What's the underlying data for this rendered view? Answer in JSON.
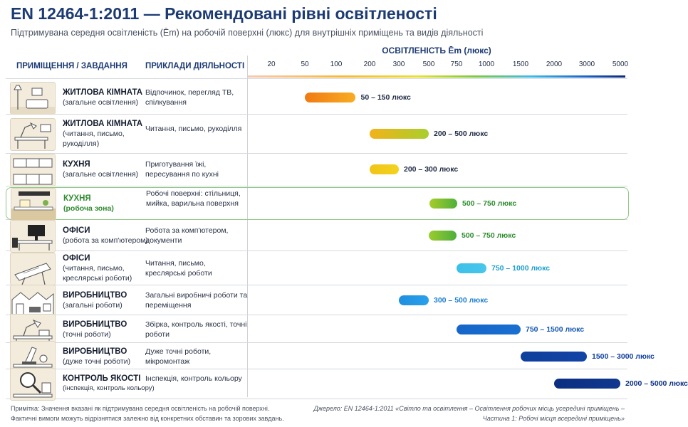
{
  "title": "EN 12464-1:2011 — Рекомендовані рівні освітленості",
  "subtitle": "Підтримувана середня освітленість (Ēm) на робочій поверхні (люкс) для внутрішніх приміщень та видів діяльності",
  "headers": {
    "room": "ПРИМІЩЕННЯ / ЗАВДАННЯ",
    "activity": "ПРИКЛАДИ ДІЯЛЬНОСТІ"
  },
  "chart_data": {
    "type": "bar",
    "orientation": "horizontal-range",
    "xlabel": "ОСВІТЛЕНІСТЬ Ēm (люкс)",
    "x_scale": "log",
    "x_ticks": [
      "20",
      "50",
      "100",
      "200",
      "300",
      "500",
      "750",
      "1000",
      "1500",
      "2000",
      "3000",
      "5000"
    ],
    "x_tick_values": [
      20,
      50,
      100,
      200,
      300,
      500,
      750,
      1000,
      1500,
      2000,
      3000,
      5000
    ],
    "grid": false,
    "categories": [
      "ЖИТЛОВА КІМНАТА (загальне освітлення)",
      "ЖИТЛОВА КІМНАТА (читання, письмо, рукоділля)",
      "КУХНЯ (загальне освітлення)",
      "КУХНЯ (робоча зона)",
      "ОФІСИ (робота за комп'ютером)",
      "ОФІСИ (читання, письмо, креслярські роботи)",
      "ВИРОБНИЦТВО (загальні роботи)",
      "ВИРОБНИЦТВО (точні роботи)",
      "ВИРОБНИЦТВО (дуже точні роботи)",
      "КОНТРОЛЬ ЯКОСТІ (інспекція, контроль кольору)"
    ],
    "rows": [
      {
        "name": "ЖИТЛОВА КІМНАТА",
        "sub": [
          "(загальне освітлення)"
        ],
        "activity": "Відпочинок, перегляд ТВ, спілкування",
        "min": 50,
        "max": 150,
        "label": "50 – 150 люкс",
        "color_from": "#f07a12",
        "color_to": "#f8ac24",
        "label_color": "#1f2a44",
        "icon": "living-room-icon"
      },
      {
        "name": "ЖИТЛОВА КІМНАТА",
        "sub": [
          "(читання, письмо,",
          "рукоділля)"
        ],
        "activity": "Читання, письмо, рукоділля",
        "min": 200,
        "max": 500,
        "label": "200 – 500 люкс",
        "color_from": "#f3b21a",
        "color_to": "#a8cf2c",
        "label_color": "#1f2a44",
        "icon": "desk-lamp-icon"
      },
      {
        "name": "КУХНЯ",
        "sub": [
          "(загальне освітлення)"
        ],
        "activity": "Приготування їжі, пересування по кухні",
        "min": 200,
        "max": 300,
        "label": "200 – 300 люкс",
        "color_from": "#f0c418",
        "color_to": "#f3d31e",
        "label_color": "#1f2a44",
        "icon": "kitchen-icon"
      },
      {
        "name": "КУХНЯ",
        "sub": [
          "(робоча зона)"
        ],
        "activity": "Робочі поверхні: стільниця, мийка, варильна поверхня",
        "min": 500,
        "max": 750,
        "label": "500 – 750 люкс",
        "color_from": "#a6cc2a",
        "color_to": "#4fb03a",
        "label_color": "#2e8b2e",
        "highlight": true,
        "icon": "kitchen-counter-icon"
      },
      {
        "name": "ОФІСИ",
        "sub": [
          "(робота за комп'ютером)"
        ],
        "activity": "Робота за комп'ютером, документи",
        "min": 500,
        "max": 750,
        "label": "500 – 750 люкс",
        "color_from": "#9ccc2e",
        "color_to": "#4caf3c",
        "label_color": "#2e8b2e",
        "icon": "computer-desk-icon"
      },
      {
        "name": "ОФІСИ",
        "sub": [
          "(читання, письмо,",
          "креслярські роботи)"
        ],
        "activity": "Читання, письмо, креслярські роботи",
        "min": 750,
        "max": 1000,
        "label": "750 – 1000 люкс",
        "color_from": "#3cc0e8",
        "color_to": "#49c6ec",
        "label_color": "#1e9fd0",
        "icon": "drafting-table-icon"
      },
      {
        "name": "ВИРОБНИЦТВО",
        "sub": [
          "(загальні роботи)"
        ],
        "activity": "Загальні виробничі роботи та переміщення",
        "min": 300,
        "max": 500,
        "label": "300 – 500 люкс",
        "color_from": "#1f8fe0",
        "color_to": "#2aa0ea",
        "label_color": "#1e7fd0",
        "icon": "factory-icon"
      },
      {
        "name": "ВИРОБНИЦТВО",
        "sub": [
          "(точні роботи)"
        ],
        "activity": "Збірка, контроль якості, точні роботи",
        "min": 750,
        "max": 1500,
        "label": "750 – 1500 люкс",
        "color_from": "#1566c8",
        "color_to": "#1a6fd0",
        "label_color": "#1557b0",
        "icon": "work-lamp-icon"
      },
      {
        "name": "ВИРОБНИЦТВО",
        "sub": [
          "(дуже точні роботи)"
        ],
        "activity": "Дуже точні роботи, мікромонтаж",
        "min": 1500,
        "max": 3000,
        "label": "1500 – 3000 люкс",
        "color_from": "#0f3f9c",
        "color_to": "#1244a6",
        "label_color": "#0f3f9c",
        "icon": "microscope-icon"
      },
      {
        "name": "КОНТРОЛЬ ЯКОСТІ",
        "sub": [
          "(інспекція, контроль кольору)"
        ],
        "activity": "Інспекція, контроль кольору",
        "min": 2000,
        "max": 5000,
        "label": "2000 – 5000 люкс",
        "color_from": "#0c2f80",
        "color_to": "#10388e",
        "label_color": "#0c2f80",
        "icon": "magnifier-icon"
      }
    ]
  },
  "footer": {
    "note_1": "Примітка: Значення вказані як підтримувана середня освітленість на робочій поверхні.",
    "note_2": "Фактичні вимоги можуть відрізнятися залежно від конкретних обставин та зорових завдань.",
    "source_1": "Джерело: EN 12464-1:2011 «Світло та освітлення – Освітлення робочих місць усередині приміщень –",
    "source_2": "Частина 1: Робочі місця всередині приміщень»"
  }
}
